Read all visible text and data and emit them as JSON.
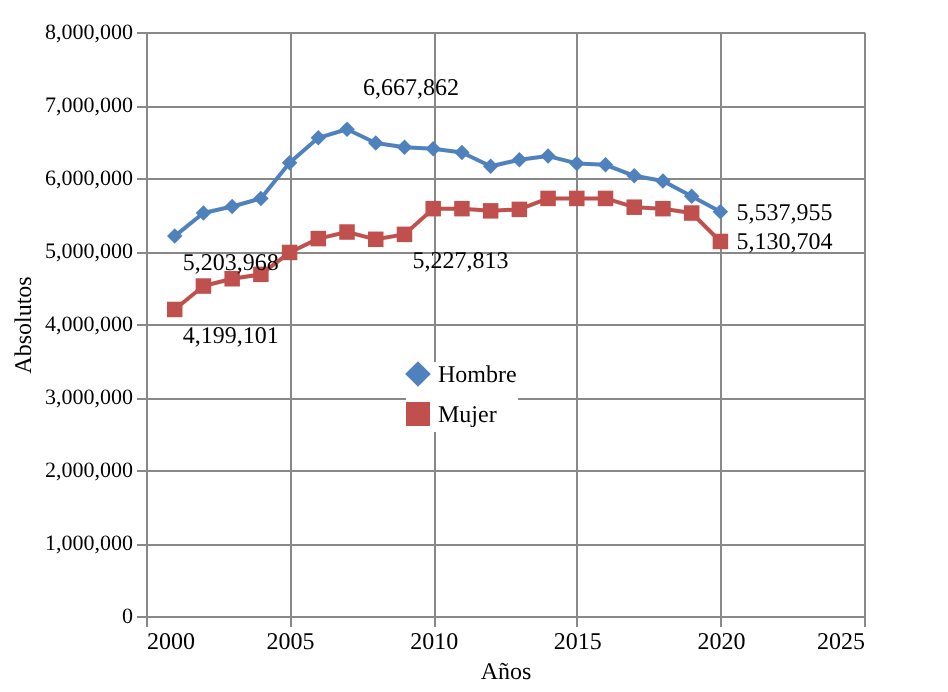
{
  "chart_data": {
    "type": "line",
    "xlabel": "Años",
    "ylabel": "Absolutos",
    "x": [
      2001,
      2002,
      2003,
      2004,
      2005,
      2006,
      2007,
      2008,
      2009,
      2010,
      2011,
      2012,
      2013,
      2014,
      2015,
      2016,
      2017,
      2018,
      2019,
      2020
    ],
    "series": [
      {
        "name": "Hombre",
        "color": "#4f81bd",
        "marker": "diamond",
        "values": [
          5203968,
          5520000,
          5610000,
          5720000,
          6210000,
          6550000,
          6667862,
          6480000,
          6420000,
          6400000,
          6350000,
          6160000,
          6250000,
          6300000,
          6200000,
          6180000,
          6030000,
          5960000,
          5750000,
          5537955
        ]
      },
      {
        "name": "Mujer",
        "color": "#c0504d",
        "marker": "square",
        "values": [
          4199101,
          4520000,
          4620000,
          4680000,
          4980000,
          5170000,
          5260000,
          5160000,
          5227813,
          5580000,
          5580000,
          5550000,
          5570000,
          5720000,
          5720000,
          5720000,
          5600000,
          5580000,
          5520000,
          5130704
        ]
      }
    ],
    "annotations": [
      {
        "text": "5,203,968",
        "x": 2001,
        "y": 5203968
      },
      {
        "text": "6,667,862",
        "x": 2007,
        "y": 6667862
      },
      {
        "text": "4,199,101",
        "x": 2001,
        "y": 4199101
      },
      {
        "text": "5,227,813",
        "x": 2009,
        "y": 5227813
      },
      {
        "text": "5,537,955",
        "x": 2020,
        "y": 5537955
      },
      {
        "text": "5,130,704",
        "x": 2020,
        "y": 5130704
      }
    ],
    "xlim": [
      2000,
      2025
    ],
    "xticks": [
      2000,
      2005,
      2010,
      2015,
      2020,
      2025
    ],
    "ylim": [
      0,
      8000000
    ],
    "yticks": [
      0,
      {
        "value": 1000000,
        "label": "1,000,000"
      },
      {
        "value": 2000000,
        "label": "2,000,000"
      },
      {
        "value": 3000000,
        "label": "3,000,000"
      },
      {
        "value": 4000000,
        "label": "4,000,000"
      },
      {
        "value": 5000000,
        "label": "5,000,000"
      },
      {
        "value": 6000000,
        "label": "6,000,000"
      },
      {
        "value": 7000000,
        "label": "7,000,000"
      },
      {
        "value": 8000000,
        "label": "8,000,000"
      }
    ],
    "grid": true,
    "legend": "left",
    "line_style": "solid"
  }
}
